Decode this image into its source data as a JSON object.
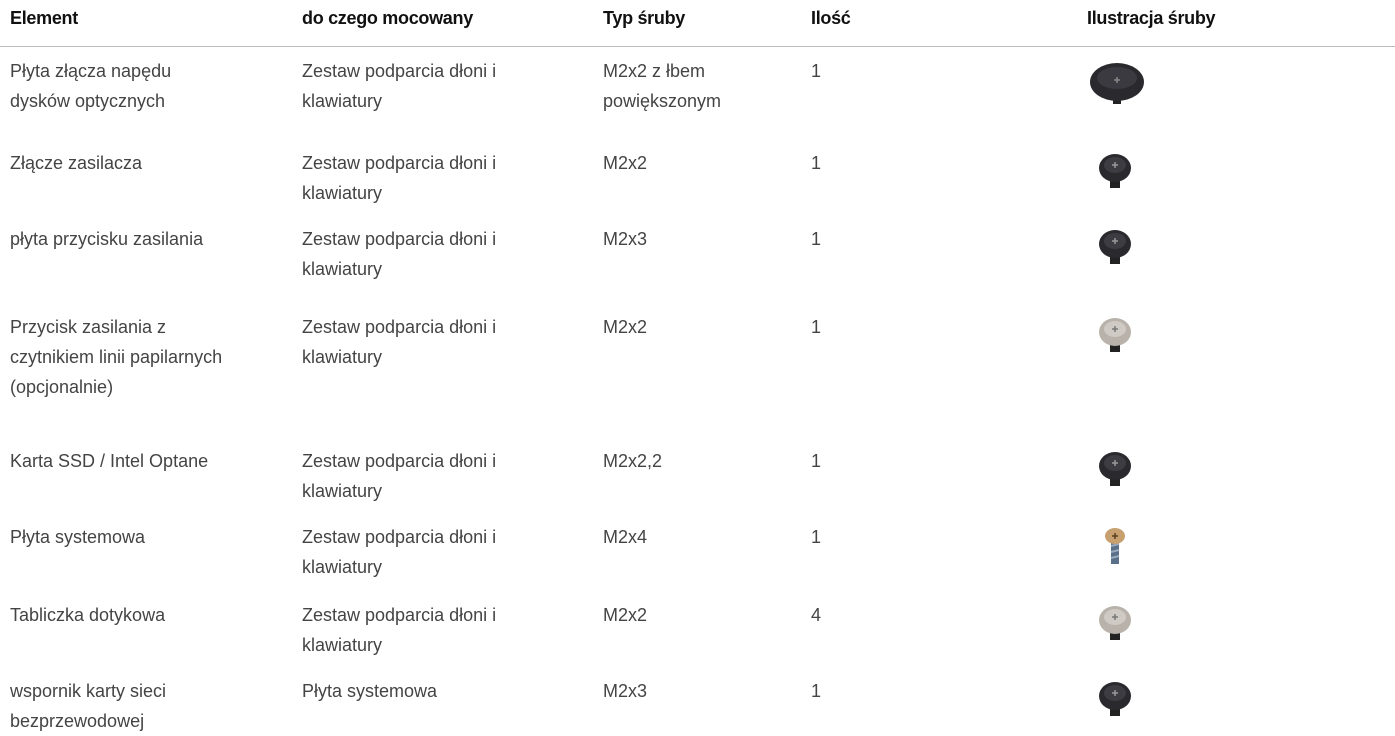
{
  "table": {
    "header": [
      "Element",
      "do czego mocowany",
      "Typ śruby",
      "Ilość",
      "Ilustracja śruby"
    ],
    "rows": [
      [
        "Płyta złącza napędu\ndysków optycznych",
        "Zestaw podparcia dłoni i\nklawiatury",
        "M2x2 z łbem\npowiększonym",
        "1"
      ],
      [
        "Złącze zasilacza",
        "Zestaw podparcia dłoni i\nklawiatury",
        "M2x2",
        "1"
      ],
      [
        "płyta przycisku zasilania",
        "Zestaw podparcia dłoni i\nklawiatury",
        "M2x3",
        "1"
      ],
      [
        "Przycisk zasilania z\nczytnikiem linii papilarnych\n(opcjonalnie)",
        "Zestaw podparcia dłoni i\nklawiatury",
        "M2x2",
        "1"
      ],
      [
        "Karta SSD / Intel Optane",
        "Zestaw podparcia dłoni i\nklawiatury",
        "M2x2,2",
        "1"
      ],
      [
        "Płyta systemowa",
        "Zestaw podparcia dłoni i\nklawiatury",
        "M2x4",
        "1"
      ],
      [
        "Tabliczka dotykowa",
        "Zestaw podparcia dłoni i\nklawiatury",
        "M2x2",
        "4"
      ],
      [
        "wspornik karty sieci\nbezprzewodowej",
        "Płyta systemowa",
        "M2x3",
        "1"
      ]
    ]
  }
}
